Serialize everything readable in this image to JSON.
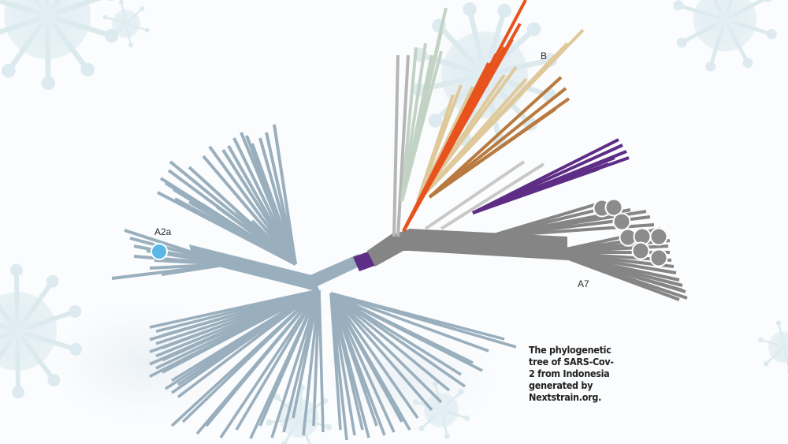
{
  "labels": {
    "a2a": "A2a",
    "b": "B",
    "a7": "A7"
  },
  "caption": "The phylogenetic tree of SARS-Cov-2 from Indonesia generated by Nextstrain.org.",
  "colors": {
    "clade_a2a_blue_grey": "#9aafbd",
    "clade_a7_grey": "#858585",
    "clade_b_orange_red": "#e8531d",
    "clade_b_tan": "#dfc89a",
    "clade_b_brown": "#b87a3f",
    "clade_b_sage": "#c2d2c4",
    "clade_b_light_grey": "#c8c8c8",
    "clade_purple": "#5e2d86",
    "marker_blue": "#5ab8e6",
    "marker_grey": "#8c8c8c",
    "virus_background": "#cfe3ea"
  }
}
